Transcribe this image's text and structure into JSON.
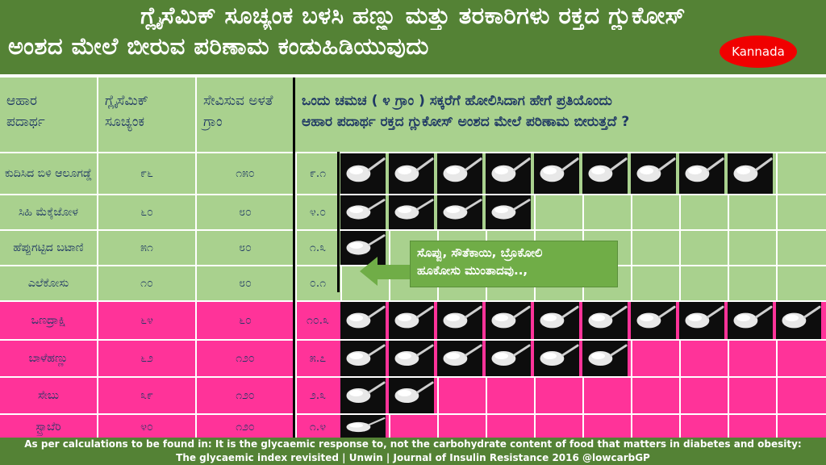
{
  "header": {
    "title_line1": "ಗ್ಲೈಸೆಮಿಕ್ ಸೂಚ್ಯಂಕ ಬಳಸಿ ಹಣ್ಣು ಮತ್ತು ತರಕಾರಿಗಳು ರಕ್ತದ ಗ್ಲುಕೋಸ್",
    "title_line2": "ಅಂಶದ ಮೇಲೆ ಬೀರುವ ಪರಿಣಾಮ ಕಂಡುಹಿಡಿಯುವುದು",
    "language_badge": "Kannada"
  },
  "table": {
    "columns": [
      "ಆಹಾರ ಪದಾರ್ಥ",
      "ಗ್ಲೈಸೆಮಿಕ್ ಸೂಚ್ಯಂಕ",
      "ಸೇವಿಸುವ ಅಳತೆ ಗ್ರಾಂ"
    ],
    "spoon_header_line1": "ಒಂದು ಚಮಚ ( ೪ ಗ್ರಾಂ ) ಸಕ್ಕರೆಗೆ ಹೋಲಿಸಿದಾಗ ಹೇಗೆ ಪ್ರತಿಯೊಂದು",
    "spoon_header_line2": "ಆಹಾರ ಪದಾರ್ಥ ರಕ್ತದ ಗ್ಲುಕೋಸ್ ಅಂಶದ ಮೇಲೆ ಪರಿಣಾಮ ಬೀರುತ್ತದೆ ?",
    "rows": [
      {
        "food": "ಕುದಿಸಿದ ಬಿಳಿ ಆಲೂಗಡ್ಡೆ",
        "gi": "೯೬",
        "serving": "೧೫೦",
        "spoons": "೯.೧",
        "spoon_count": 9,
        "group": "veg"
      },
      {
        "food": "ಸಿಹಿ ಮೆಕ್ಕೆಜೋಳ",
        "gi": "೬೦",
        "serving": "೮೦",
        "spoons": "೪.೦",
        "spoon_count": 4,
        "group": "veg"
      },
      {
        "food": "ಹೆಪ್ಪುಗಟ್ಟಿದ ಬಟಾಣಿ",
        "gi": "೫೧",
        "serving": "೮೦",
        "spoons": "೧.೩",
        "spoon_count": 1,
        "group": "veg"
      },
      {
        "food": "ಎಲೆಕೋಸು",
        "gi": "೧೦",
        "serving": "೮೦",
        "spoons": "೦.೧",
        "spoon_count": 0,
        "group": "veg"
      },
      {
        "food": "ಒಣದ್ರಾಕ್ಷಿ",
        "gi": "೬೪",
        "serving": "೬೦",
        "spoons": "೧೦.೩",
        "spoon_count": 10,
        "group": "fruit"
      },
      {
        "food": "ಬಾಳೆಹಣ್ಣು",
        "gi": "೬೨",
        "serving": "೧೨೦",
        "spoons": "೫.೭",
        "spoon_count": 6,
        "group": "fruit"
      },
      {
        "food": "ಸೇಬು",
        "gi": "೩೯",
        "serving": "೧೨೦",
        "spoons": "೨.೩",
        "spoon_count": 2,
        "group": "fruit"
      },
      {
        "food": "ಸ್ಟ್ರಾಬೆರಿ",
        "gi": "೪೦",
        "serving": "೧೨೦",
        "spoons": "೧.೪",
        "spoon_count": 1,
        "group": "fruit"
      }
    ]
  },
  "callout": {
    "line1": "ಸೊಪ್ಪು, ಸೌತೆಕಾಯಿ, ಬ್ರೊಕೋಲಿ",
    "line2": "ಹೂಕೋಸು ಮುಂತಾದವು..,"
  },
  "footer": {
    "line1": "As per calculations to be found in: It is the glycaemic response to, not the carbohydrate content of food that matters in diabetes and obesity:",
    "line2": "The glycaemic index revisited | Unwin | Journal of Insulin Resistance 2016 @lowcarbGP"
  },
  "colors": {
    "header_green": "#548235",
    "veg_green": "#a9d18e",
    "fruit_pink": "#ff3399",
    "text_navy": "#1f3864",
    "badge_red": "#f00000"
  },
  "icons": {
    "spoon": "sugar-spoon-icon"
  }
}
